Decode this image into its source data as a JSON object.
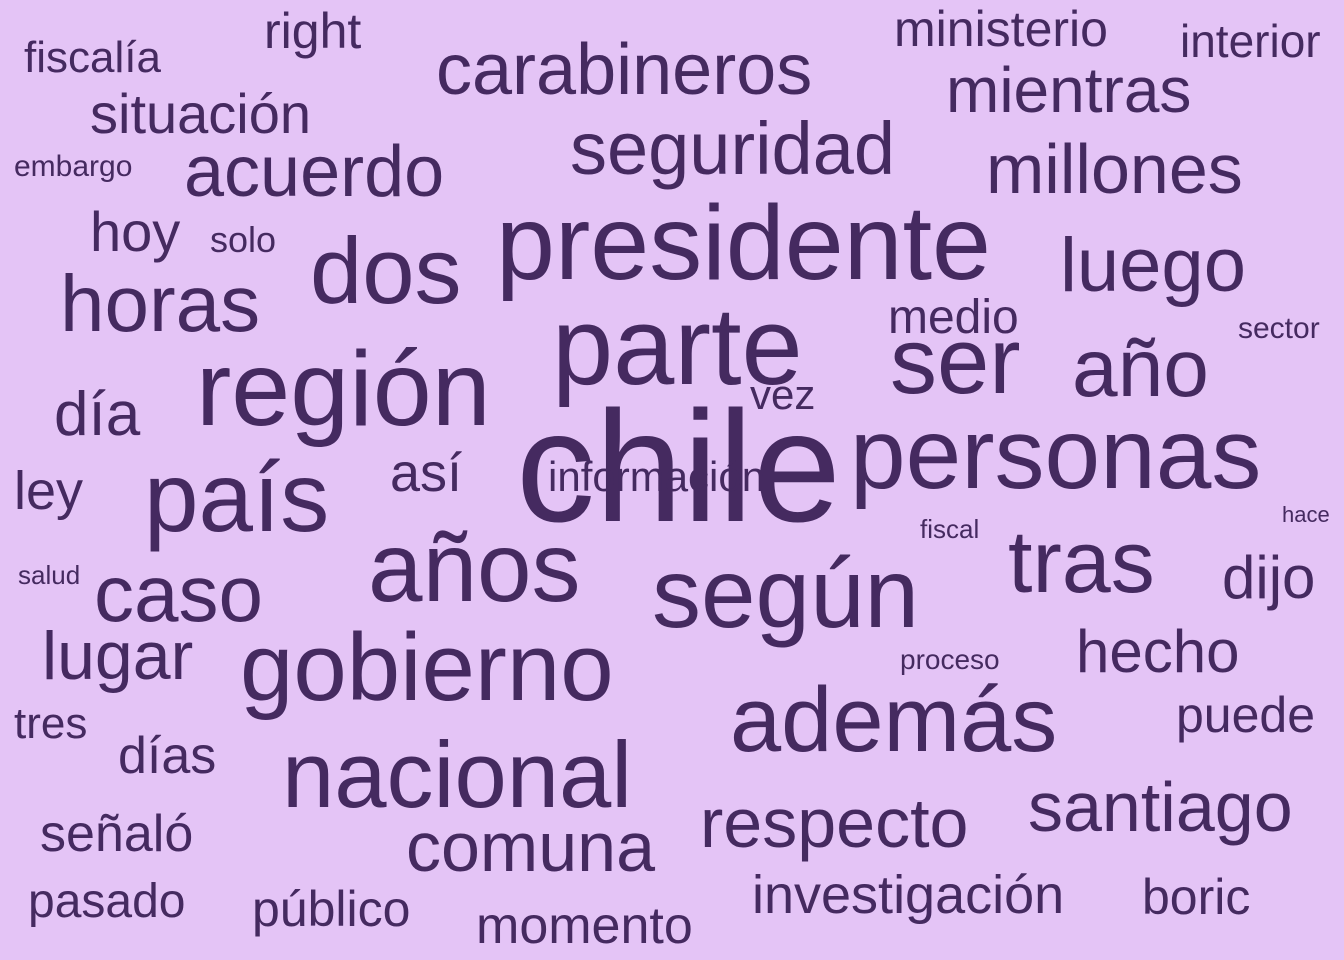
{
  "colors": {
    "background": "#e4c4f6",
    "text": "#452a60"
  },
  "words": [
    "chile",
    "presidente",
    "parte",
    "región",
    "personas",
    "país",
    "años",
    "según",
    "gobierno",
    "además",
    "nacional",
    "ser",
    "dos",
    "tras",
    "año",
    "horas",
    "caso",
    "luego",
    "carabineros",
    "seguridad",
    "millones",
    "acuerdo",
    "santiago",
    "respecto",
    "comuna",
    "mientras",
    "lugar",
    "hecho",
    "situación",
    "investigación",
    "día",
    "dijo",
    "momento",
    "señaló",
    "así",
    "hoy",
    "ley",
    "días",
    "puede",
    "medio",
    "público",
    "pasado",
    "ministerio",
    "boric",
    "interior",
    "fiscalía",
    "tres",
    "right",
    "vez",
    "solo",
    "información",
    "embargo",
    "sector",
    "proceso",
    "salud",
    "fiscal",
    "hace"
  ]
}
